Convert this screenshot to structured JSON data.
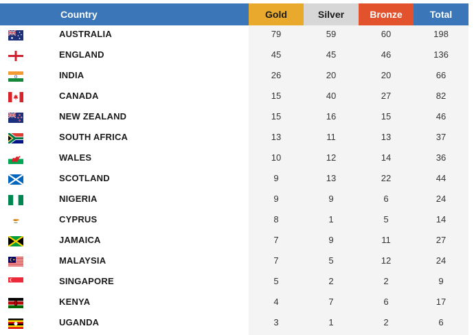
{
  "colors": {
    "header_blue": "#3a76b8",
    "gold": "#e8a92c",
    "silver": "#d7d7d7",
    "bronze": "#e2522c",
    "column_bg": "#f4f4f4"
  },
  "header": {
    "country": "Country",
    "gold": "Gold",
    "silver": "Silver",
    "bronze": "Bronze",
    "total": "Total"
  },
  "rows": [
    {
      "flag": "australia-flag-icon",
      "country": "AUSTRALIA",
      "gold": "79",
      "silver": "59",
      "bronze": "60",
      "total": "198"
    },
    {
      "flag": "england-flag-icon",
      "country": "ENGLAND",
      "gold": "45",
      "silver": "45",
      "bronze": "46",
      "total": "136"
    },
    {
      "flag": "india-flag-icon",
      "country": "INDIA",
      "gold": "26",
      "silver": "20",
      "bronze": "20",
      "total": "66"
    },
    {
      "flag": "canada-flag-icon",
      "country": "CANADA",
      "gold": "15",
      "silver": "40",
      "bronze": "27",
      "total": "82"
    },
    {
      "flag": "new-zealand-flag-icon",
      "country": "NEW ZEALAND",
      "gold": "15",
      "silver": "16",
      "bronze": "15",
      "total": "46"
    },
    {
      "flag": "south-africa-flag-icon",
      "country": "SOUTH AFRICA",
      "gold": "13",
      "silver": "11",
      "bronze": "13",
      "total": "37"
    },
    {
      "flag": "wales-flag-icon",
      "country": "WALES",
      "gold": "10",
      "silver": "12",
      "bronze": "14",
      "total": "36"
    },
    {
      "flag": "scotland-flag-icon",
      "country": "SCOTLAND",
      "gold": "9",
      "silver": "13",
      "bronze": "22",
      "total": "44"
    },
    {
      "flag": "nigeria-flag-icon",
      "country": "NIGERIA",
      "gold": "9",
      "silver": "9",
      "bronze": "6",
      "total": "24"
    },
    {
      "flag": "cyprus-flag-icon",
      "country": "CYPRUS",
      "gold": "8",
      "silver": "1",
      "bronze": "5",
      "total": "14"
    },
    {
      "flag": "jamaica-flag-icon",
      "country": "JAMAICA",
      "gold": "7",
      "silver": "9",
      "bronze": "11",
      "total": "27"
    },
    {
      "flag": "malaysia-flag-icon",
      "country": "MALAYSIA",
      "gold": "7",
      "silver": "5",
      "bronze": "12",
      "total": "24"
    },
    {
      "flag": "singapore-flag-icon",
      "country": "SINGAPORE",
      "gold": "5",
      "silver": "2",
      "bronze": "2",
      "total": "9"
    },
    {
      "flag": "kenya-flag-icon",
      "country": "KENYA",
      "gold": "4",
      "silver": "7",
      "bronze": "6",
      "total": "17"
    },
    {
      "flag": "uganda-flag-icon",
      "country": "UGANDA",
      "gold": "3",
      "silver": "1",
      "bronze": "2",
      "total": "6"
    }
  ]
}
